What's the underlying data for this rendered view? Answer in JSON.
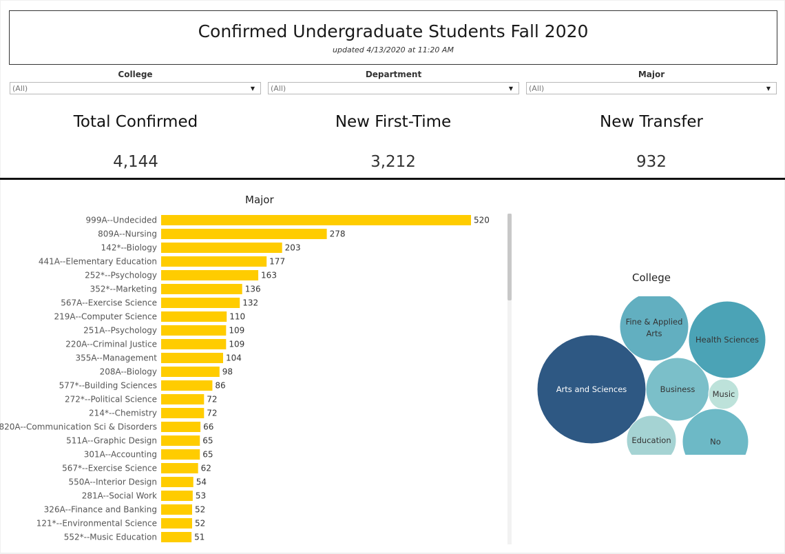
{
  "header": {
    "title": "Confirmed Undergraduate Students Fall 2020",
    "subtitle": "updated 4/13/2020 at 11:20 AM"
  },
  "filters": [
    {
      "label": "College",
      "value": "(All)"
    },
    {
      "label": "Department",
      "value": "(All)"
    },
    {
      "label": "Major",
      "value": "(All)"
    }
  ],
  "kpis": [
    {
      "label": "Total Confirmed",
      "value": "4,144"
    },
    {
      "label": "New First-Time",
      "value": "3,212"
    },
    {
      "label": "New Transfer",
      "value": "932"
    }
  ],
  "colors": {
    "bar": "#FFCC00",
    "arts_and_sciences": "#2E5883",
    "health_sciences": "#4BA3B6",
    "fine_applied_arts": "#62AFC0",
    "business": "#7BBFC9",
    "no": "#6DB9C6",
    "education": "#A5D3D3",
    "music": "#BDE2DA"
  },
  "chart_data": [
    {
      "type": "bar",
      "orientation": "horizontal",
      "title": "Major",
      "categories": [
        "999A--Undecided",
        "809A--Nursing",
        "142*--Biology",
        "441A--Elementary Education",
        "252*--Psychology",
        "352*--Marketing",
        "567A--Exercise Science",
        "219A--Computer Science",
        "251A--Psychology",
        "220A--Criminal Justice",
        "355A--Management",
        "208A--Biology",
        "577*--Building Sciences",
        "272*--Political Science",
        "214*--Chemistry",
        "820A--Communication Sci & Disorders",
        "511A--Graphic Design",
        "301A--Accounting",
        "567*--Exercise Science",
        "550A--Interior Design",
        "281A--Social Work",
        "326A--Finance and Banking",
        "121*--Environmental Science",
        "552*--Music Education"
      ],
      "values": [
        520,
        278,
        203,
        177,
        163,
        136,
        132,
        110,
        109,
        109,
        104,
        98,
        86,
        72,
        72,
        66,
        65,
        65,
        62,
        54,
        53,
        52,
        52,
        51
      ],
      "xlim": [
        0,
        520
      ],
      "grid": false,
      "data_labels": true
    },
    {
      "type": "packed-bubble",
      "title": "College",
      "items": [
        {
          "name": "Arts and Sciences",
          "key": "arts_and_sciences"
        },
        {
          "name": "Fine & Applied Arts",
          "key": "fine_applied_arts"
        },
        {
          "name": "Health Sciences",
          "key": "health_sciences"
        },
        {
          "name": "Business",
          "key": "business"
        },
        {
          "name": "Music",
          "key": "music"
        },
        {
          "name": "Education",
          "key": "education"
        },
        {
          "name": "No",
          "key": "no"
        }
      ]
    }
  ]
}
